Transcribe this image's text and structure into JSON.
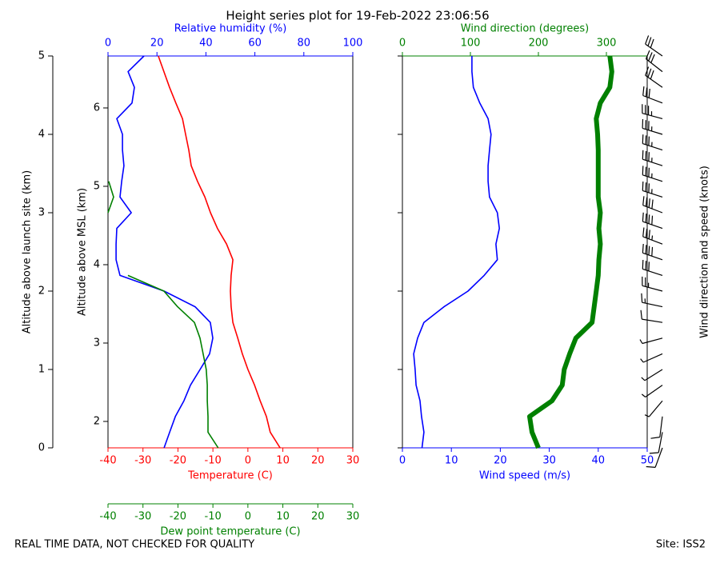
{
  "chart_data": {
    "type": "sounding",
    "title": "Height series plot for 19-Feb-2022 23:06:56",
    "footer_left": "REAL TIME DATA, NOT CHECKED FOR QUALITY",
    "footer_right": "Site: ISS2",
    "ylabel": "Altitude above launch site (km)",
    "ylim": [
      0,
      5
    ],
    "yticks": [
      0,
      1,
      2,
      3,
      4,
      5
    ],
    "y2label": "Altitude above MSL (km)",
    "y2lim": [
      1.663,
      6.663
    ],
    "y2ticks": [
      2,
      3,
      4,
      5,
      6
    ],
    "barb_label": "Wind direction and speed (knots)",
    "altitude": [
      0,
      0.2,
      0.4,
      0.6,
      0.8,
      1.0,
      1.2,
      1.4,
      1.6,
      1.8,
      2.0,
      2.2,
      2.4,
      2.6,
      2.8,
      3.0,
      3.2,
      3.4,
      3.6,
      3.8,
      4.0,
      4.2,
      4.4,
      4.6,
      4.8,
      5.0
    ],
    "panels": [
      {
        "axes": [
          {
            "position": "bottom",
            "label": "Temperature (C)",
            "color": "#ff0000",
            "lim": [
              -40,
              30
            ],
            "ticks": [
              -40,
              -30,
              -20,
              -10,
              0,
              10,
              20,
              30
            ]
          },
          {
            "position": "top",
            "label": "Relative humidity (%)",
            "color": "#0000ff",
            "lim": [
              0,
              100
            ],
            "ticks": [
              0,
              20,
              40,
              60,
              80,
              100
            ]
          },
          {
            "position": "offset",
            "label": "Dew point temperature (C)",
            "color": "#008000",
            "lim": [
              -40,
              30
            ],
            "ticks": [
              -40,
              -30,
              -20,
              -10,
              0,
              10,
              20,
              30
            ]
          }
        ],
        "series": [
          {
            "axis": 0,
            "color": "#ff0000",
            "values": [
              9.2,
              6.4,
              5.3,
              3.5,
              1.9,
              0,
              -1.6,
              -2.9,
              -4.3,
              -4.8,
              -5.0,
              -4.8,
              -4.3,
              -6.1,
              -8.7,
              -10.7,
              -12.3,
              -14.4,
              -16.2,
              -16.9,
              -17.8,
              -18.7,
              -20.6,
              -22.4,
              -24.0,
              -25.6
            ]
          },
          {
            "axis": 1,
            "color": "#0000ff",
            "values": [
              22.9,
              25.2,
              27.5,
              31.0,
              33.7,
              37.6,
              41.5,
              42.8,
              41.8,
              35.6,
              22.9,
              4.9,
              3.3,
              3.3,
              3.6,
              9.5,
              4.9,
              5.6,
              6.5,
              5.9,
              5.9,
              3.6,
              9.8,
              10.8,
              8.2,
              14.7
            ]
          },
          {
            "axis": 2,
            "color": "#008000",
            "values": [
              -8.5,
              -11.4,
              -11.4,
              -11.6,
              -11.6,
              -11.9,
              -12.8,
              -13.7,
              -15.3,
              -20.1,
              -24.0,
              -34.3,
              null,
              null,
              null,
              -40,
              -38.4,
              -39.8,
              null,
              null,
              null,
              null,
              null,
              null,
              null,
              null
            ]
          }
        ]
      },
      {
        "axes": [
          {
            "position": "bottom",
            "label": "Wind speed (m/s)",
            "color": "#0000ff",
            "lim": [
              0,
              50
            ],
            "ticks": [
              0,
              10,
              20,
              30,
              40,
              50
            ]
          },
          {
            "position": "top",
            "label": "Wind direction (degrees)",
            "color": "#008000",
            "lim": [
              0,
              360
            ],
            "ticks": [
              0,
              100,
              200,
              300
            ]
          }
        ],
        "series": [
          {
            "axis": 0,
            "color": "#0000ff",
            "values": [
              4.0,
              4.4,
              3.9,
              3.6,
              2.8,
              2.6,
              2.3,
              3.1,
              4.4,
              8.5,
              13.4,
              16.7,
              19.4,
              19.1,
              19.8,
              19.4,
              17.8,
              17.5,
              17.5,
              17.8,
              18.1,
              17.5,
              15.8,
              14.5,
              14.2,
              14.2
            ]
          },
          {
            "axis": 1,
            "color": "#008000",
            "width": 6,
            "values": [
              200,
              190.6,
              187,
              220,
              235,
              238,
              246,
              255,
              279,
              282,
              285,
              288,
              289,
              291,
              289,
              291,
              288,
              288,
              288,
              288,
              287,
              285,
              291,
              305,
              308,
              305
            ]
          }
        ]
      }
    ]
  }
}
